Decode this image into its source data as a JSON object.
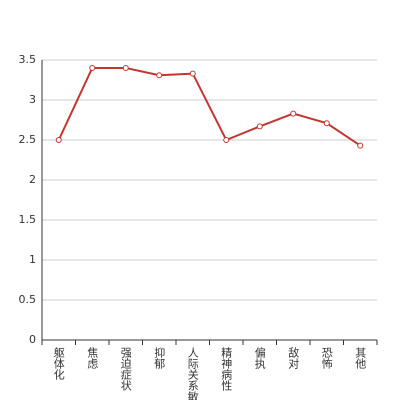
{
  "chart_data": {
    "type": "line",
    "categories": [
      "躯体化",
      "焦虑",
      "强迫症状",
      "抑郁",
      "人际关系敏感",
      "精神病性",
      "偏执",
      "敌对",
      "恐怖",
      "其他"
    ],
    "values": [
      2.5,
      3.4,
      3.4,
      3.31,
      3.33,
      2.5,
      2.67,
      2.83,
      2.71,
      2.43
    ],
    "color": "#c23531",
    "ylim": [
      0,
      3.5
    ],
    "yticks": [
      0,
      0.5,
      1,
      1.5,
      2,
      2.5,
      3,
      3.5
    ],
    "grid": true
  }
}
